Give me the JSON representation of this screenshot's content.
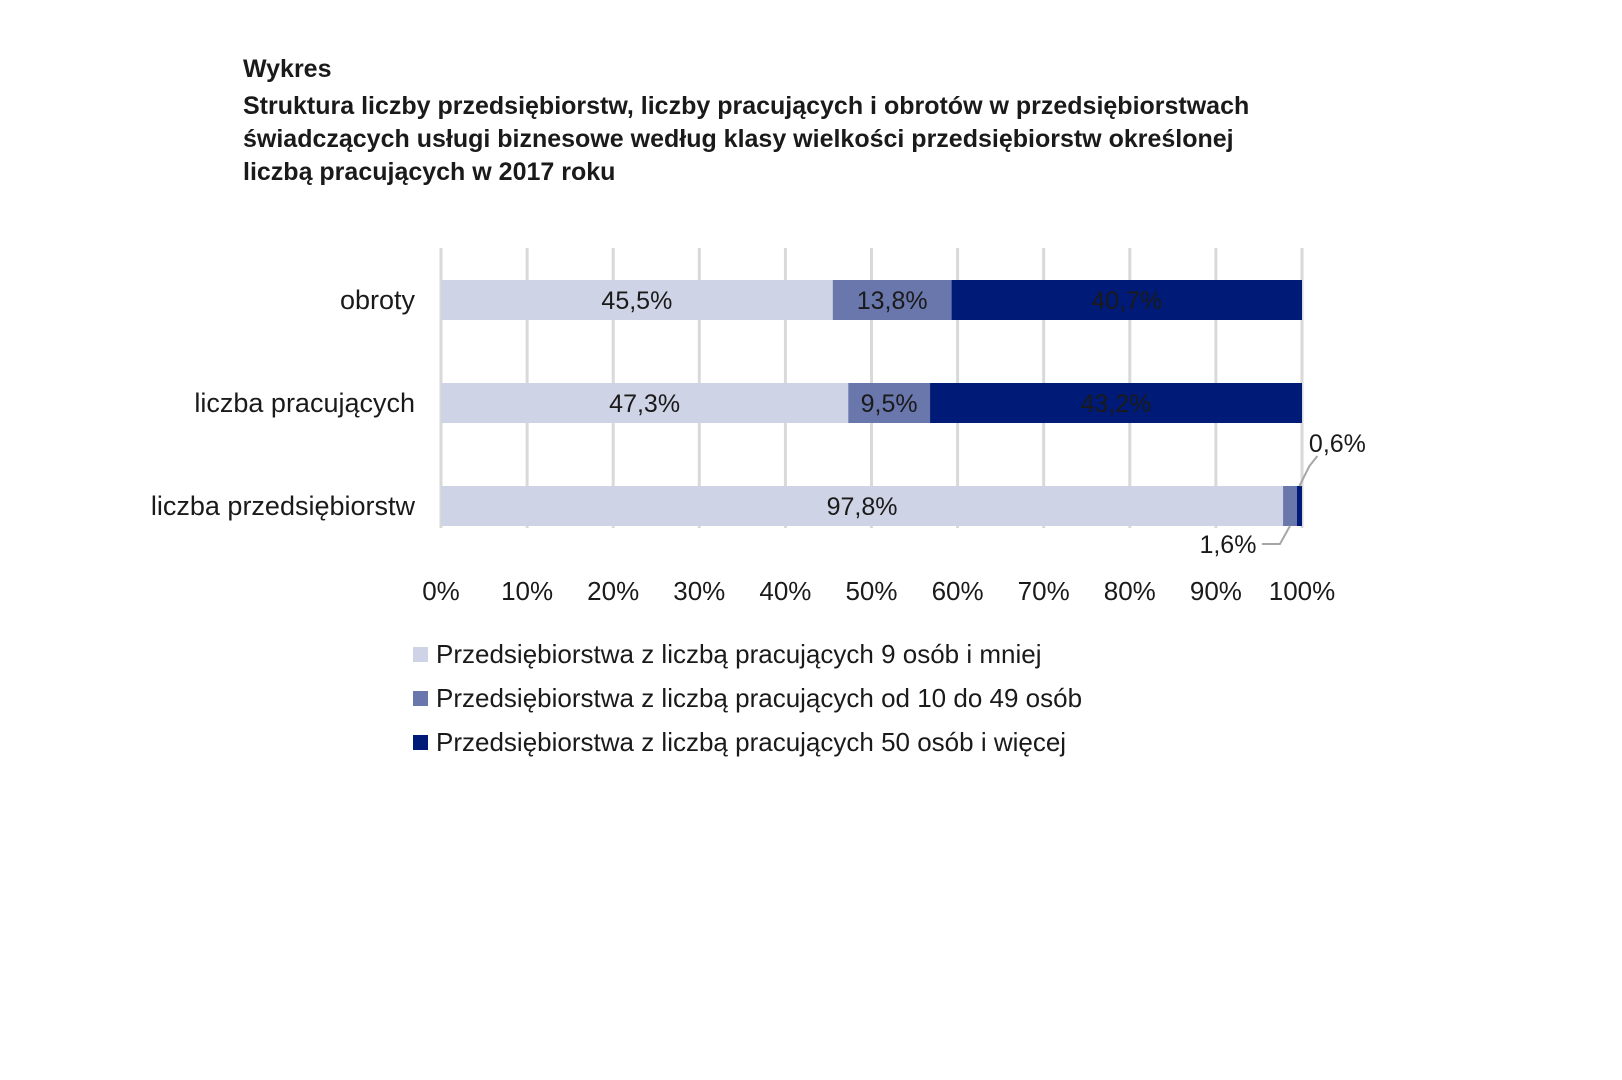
{
  "header": {
    "label": "Wykres",
    "title_lines": [
      "Struktura liczby przedsiębiorstw, liczby pracujących i obrotów w przedsiębiorstwach",
      "świadczących usługi biznesowe według klasy wielkości przedsiębiorstw określonej",
      "liczbą pracujących w 2017 roku"
    ]
  },
  "chart_data": {
    "type": "bar",
    "orientation": "horizontal",
    "stacked": true,
    "categories": [
      "obroty",
      "liczba pracujących",
      "liczba przedsiębiorstw"
    ],
    "series": [
      {
        "name": "Przedsiębiorstwa z liczbą pracujących 9 osób i mniej",
        "color": "#ced3e5",
        "values": [
          45.5,
          47.3,
          97.8
        ],
        "labels": [
          "45,5%",
          "47,3%",
          "97,8%"
        ]
      },
      {
        "name": "Przedsiębiorstwa z liczbą pracujących od 10 do 49 osób",
        "color": "#6977ad",
        "values": [
          13.8,
          9.5,
          1.6
        ],
        "labels": [
          "13,8%",
          "9,5%",
          "1,6%"
        ]
      },
      {
        "name": "Przedsiębiorstwa z liczbą pracujących 50 osób i więcej",
        "color": "#001b77",
        "values": [
          40.7,
          43.2,
          0.6
        ],
        "labels": [
          "40,7%",
          "43,2%",
          "0,6%"
        ]
      }
    ],
    "xlim": [
      0,
      100
    ],
    "xticks": [
      "0%",
      "10%",
      "20%",
      "30%",
      "40%",
      "50%",
      "60%",
      "70%",
      "80%",
      "90%",
      "100%"
    ],
    "grid": true,
    "legend_position": "bottom"
  }
}
